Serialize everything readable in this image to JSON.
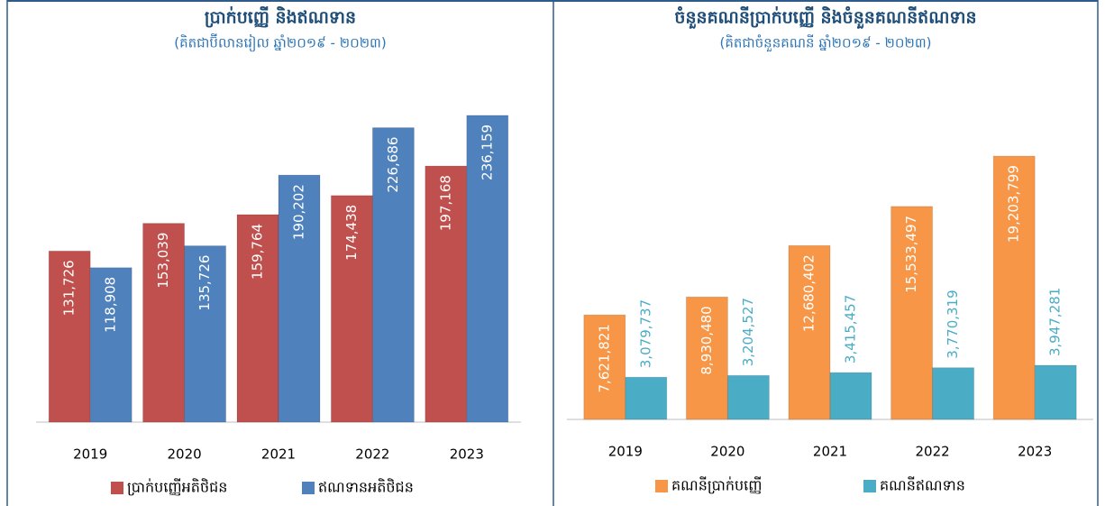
{
  "chart_data": [
    {
      "type": "bar",
      "title": "ប្រាក់បញ្ញើ និងឥណទាន",
      "subtitle": "(គិតជាប៊ីលានរៀល ឆ្នាំ២០១៩ - ២០២៣)",
      "categories": [
        "2019",
        "2020",
        "2021",
        "2022",
        "2023"
      ],
      "series": [
        {
          "name": "ប្រាក់បញ្ញើអតិថិជន",
          "color": "#c0504d",
          "values": [
            131726,
            153039,
            159764,
            174438,
            197168
          ],
          "value_labels": [
            "131,726",
            "153,039",
            "159,764",
            "174,438",
            "197,168"
          ]
        },
        {
          "name": "ឥណទានអតិថិជន",
          "color": "#4f81bd",
          "values": [
            118908,
            135726,
            190202,
            226686,
            236159
          ],
          "value_labels": [
            "118,908",
            "135,726",
            "190,202",
            "226,686",
            "236,159"
          ]
        }
      ],
      "ylim": [
        0,
        250000
      ]
    },
    {
      "type": "bar",
      "title": "ចំនួនគណនីប្រាក់បញ្ញើ និងចំនួនគណនីឥណទាន",
      "subtitle": "(គិតជាចំនួនគណនី ឆ្នាំ២០១៩ - ២០២៣)",
      "categories": [
        "2019",
        "2020",
        "2021",
        "2022",
        "2023"
      ],
      "series": [
        {
          "name": "គណនីប្រាក់បញ្ញើ",
          "color": "#f79646",
          "values": [
            7621821,
            8930480,
            12680402,
            15533497,
            19203799
          ],
          "value_labels": [
            "7,621,821",
            "8,930,480",
            "12,680,402",
            "15,533,497",
            "19,203,799"
          ]
        },
        {
          "name": "គណនីឥណទាន",
          "color": "#4bacc6",
          "values": [
            3079737,
            3204527,
            3415457,
            3770319,
            3947281
          ],
          "value_labels": [
            "3,079,737",
            "3,204,527",
            "3,415,457",
            "3,770,319",
            "3,947,281"
          ]
        }
      ],
      "ylim": [
        0,
        25000000
      ]
    }
  ]
}
